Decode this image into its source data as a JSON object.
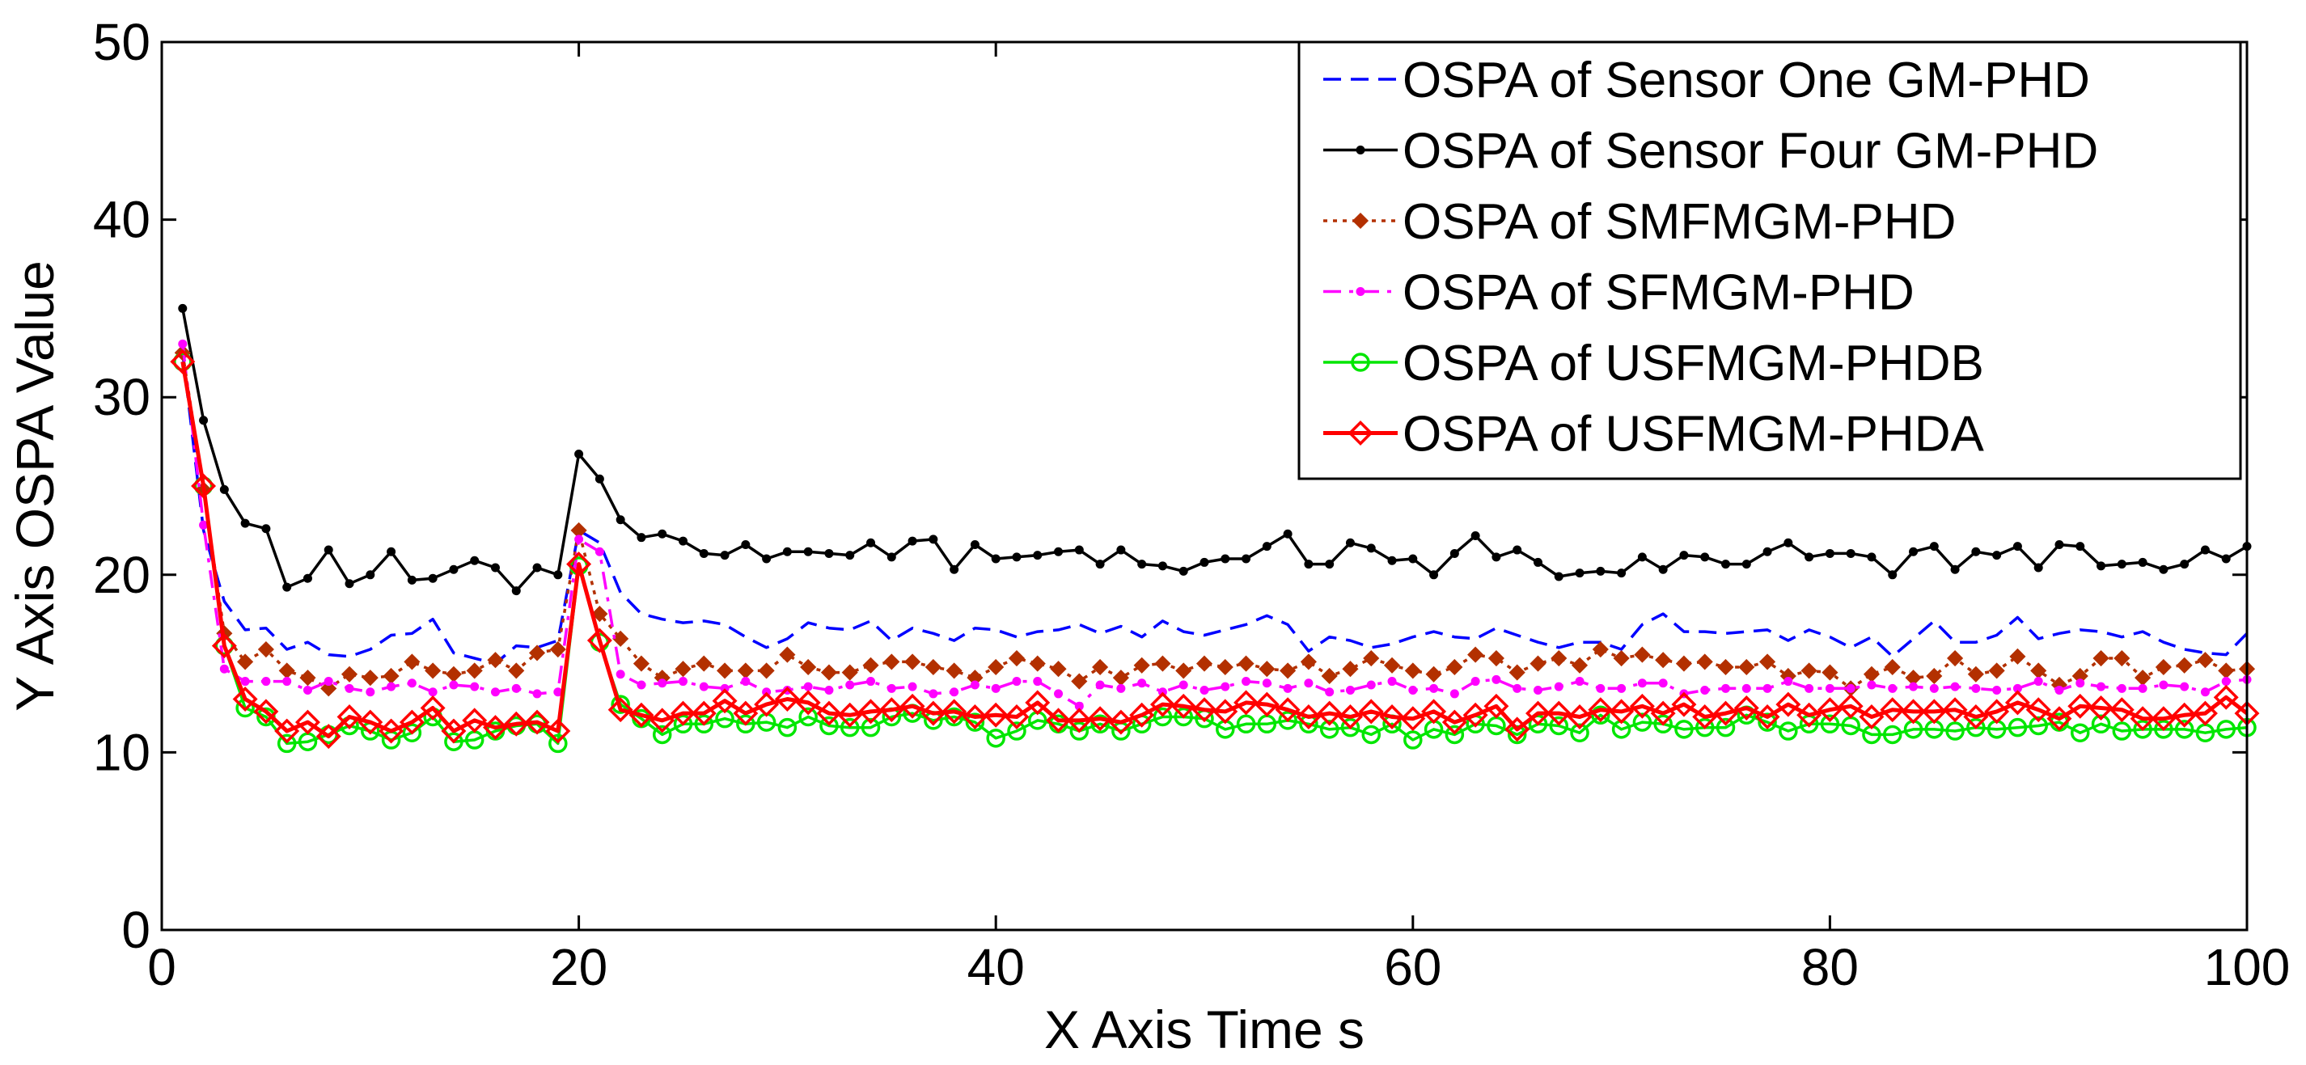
{
  "chart_data": {
    "type": "line",
    "title": "",
    "xlabel": "X Axis Time s",
    "ylabel": "Y Axis OSPA Value",
    "xlim": [
      0,
      100
    ],
    "ylim": [
      0,
      50
    ],
    "xticks": [
      0,
      20,
      40,
      60,
      80,
      100
    ],
    "yticks": [
      0,
      10,
      20,
      30,
      40,
      50
    ],
    "legend_position": "top-right",
    "series": [
      {
        "name": "OSPA of Sensor One GM-PHD",
        "color": "#0000ff",
        "line_style": "dashed",
        "marker": "none",
        "values": [
          32.5,
          22.5,
          18.5,
          16.9,
          17.0,
          15.8,
          16.2,
          15.5,
          15.4,
          15.8,
          16.6,
          16.7,
          17.5,
          15.6,
          15.3,
          15.0,
          16.0,
          15.9,
          16.3,
          22.5,
          21.8,
          19.0,
          17.8,
          17.5,
          17.3,
          17.4,
          17.2,
          16.5,
          15.9,
          16.4,
          17.3,
          17.0,
          16.9,
          17.4,
          16.3,
          17.0,
          16.7,
          16.3,
          17.0,
          16.9,
          16.5,
          16.8,
          16.9,
          17.2,
          16.7,
          17.1,
          16.5,
          17.4,
          16.8,
          16.6,
          16.9,
          17.2,
          17.7,
          17.2,
          15.7,
          16.5,
          16.3,
          15.9,
          16.1,
          16.5,
          16.8,
          16.5,
          16.4,
          17.0,
          16.6,
          16.2,
          15.9,
          16.2,
          16.2,
          15.8,
          17.2,
          17.8,
          16.8,
          16.8,
          16.7,
          16.8,
          16.9,
          16.3,
          16.9,
          16.5,
          15.9,
          16.5,
          15.4,
          16.4,
          17.4,
          16.2,
          16.2,
          16.6,
          17.6,
          16.4,
          16.7,
          16.9,
          16.8,
          16.5,
          16.8,
          16.2,
          15.8,
          15.6,
          15.5,
          16.7
        ]
      },
      {
        "name": "OSPA of Sensor Four GM-PHD",
        "color": "#000000",
        "line_style": "solid",
        "marker": "dot",
        "values": [
          35.0,
          28.7,
          24.8,
          22.9,
          22.6,
          19.3,
          19.8,
          21.4,
          19.5,
          20.0,
          21.3,
          19.7,
          19.8,
          20.3,
          20.8,
          20.4,
          19.1,
          20.4,
          20.0,
          26.8,
          25.4,
          23.1,
          22.1,
          22.3,
          21.9,
          21.2,
          21.1,
          21.7,
          20.9,
          21.3,
          21.3,
          21.2,
          21.1,
          21.8,
          21.0,
          21.9,
          22.0,
          20.3,
          21.7,
          20.9,
          21.0,
          21.1,
          21.3,
          21.4,
          20.6,
          21.4,
          20.6,
          20.5,
          20.2,
          20.7,
          20.9,
          20.9,
          21.6,
          22.3,
          20.6,
          20.6,
          21.8,
          21.5,
          20.8,
          20.9,
          20.0,
          21.2,
          22.2,
          21.0,
          21.4,
          20.7,
          19.9,
          20.1,
          20.2,
          20.1,
          21.0,
          20.3,
          21.1,
          21.0,
          20.6,
          20.6,
          21.3,
          21.8,
          21.0,
          21.2,
          21.2,
          21.0,
          20.0,
          21.3,
          21.6,
          20.3,
          21.3,
          21.1,
          21.6,
          20.4,
          21.7,
          21.6,
          20.5,
          20.6,
          20.7,
          20.3,
          20.6,
          21.4,
          20.9,
          21.6
        ]
      },
      {
        "name": "OSPA of SMFMGM-PHD",
        "color": "#b33000",
        "line_style": "dotted",
        "marker": "diamond-filled",
        "values": [
          32.5,
          24.8,
          16.7,
          15.1,
          15.8,
          14.6,
          14.2,
          13.6,
          14.4,
          14.2,
          14.3,
          15.1,
          14.6,
          14.4,
          14.6,
          15.2,
          14.6,
          15.6,
          15.8,
          22.5,
          17.8,
          16.4,
          15.0,
          14.2,
          14.7,
          15.0,
          14.6,
          14.6,
          14.6,
          15.5,
          14.8,
          14.5,
          14.5,
          14.9,
          15.1,
          15.1,
          14.8,
          14.6,
          14.2,
          14.8,
          15.3,
          15.0,
          14.7,
          14.0,
          14.8,
          14.2,
          14.9,
          15.0,
          14.6,
          15.0,
          14.8,
          15.0,
          14.7,
          14.6,
          15.1,
          14.3,
          14.7,
          15.3,
          14.9,
          14.6,
          14.4,
          14.8,
          15.5,
          15.3,
          14.5,
          15.0,
          15.3,
          14.9,
          15.8,
          15.3,
          15.5,
          15.2,
          15.0,
          15.1,
          14.8,
          14.8,
          15.1,
          14.3,
          14.6,
          14.5,
          13.6,
          14.4,
          14.8,
          14.2,
          14.3,
          15.3,
          14.4,
          14.6,
          15.4,
          14.6,
          13.8,
          14.3,
          15.3,
          15.3,
          14.2,
          14.8,
          14.9,
          15.2,
          14.6,
          14.7
        ]
      },
      {
        "name": "OSPA of SFMGM-PHD",
        "color": "#ff00ff",
        "line_style": "dashdot",
        "marker": "dot",
        "values": [
          33.0,
          22.8,
          14.7,
          14.0,
          14.0,
          14.0,
          13.5,
          14.0,
          13.6,
          13.4,
          13.7,
          13.9,
          13.4,
          13.8,
          13.7,
          13.4,
          13.6,
          13.3,
          13.4,
          22.0,
          21.3,
          14.4,
          13.8,
          13.9,
          14.0,
          13.7,
          13.6,
          14.0,
          13.4,
          13.5,
          13.7,
          13.5,
          13.8,
          14.0,
          13.6,
          13.7,
          13.3,
          13.4,
          13.8,
          13.6,
          14.0,
          14.0,
          13.3,
          12.6,
          13.8,
          13.6,
          13.9,
          13.4,
          13.8,
          13.5,
          13.7,
          14.0,
          13.9,
          13.6,
          13.9,
          13.4,
          13.5,
          13.8,
          14.0,
          13.5,
          13.6,
          13.3,
          14.0,
          14.1,
          13.6,
          13.5,
          13.7,
          14.0,
          13.6,
          13.6,
          13.9,
          13.9,
          13.3,
          13.5,
          13.6,
          13.6,
          13.6,
          14.0,
          13.6,
          13.6,
          13.6,
          13.8,
          13.6,
          13.7,
          13.6,
          13.7,
          13.6,
          13.5,
          13.6,
          14.0,
          13.5,
          13.9,
          13.7,
          13.6,
          13.6,
          13.8,
          13.7,
          13.4,
          14.0,
          14.1
        ]
      },
      {
        "name": "OSPA of USFMGM-PHDB",
        "color": "#00e600",
        "line_style": "solid",
        "marker": "circle-open",
        "values": [
          32.0,
          25.0,
          16.0,
          12.5,
          12.0,
          10.5,
          10.6,
          11.0,
          11.5,
          11.2,
          10.7,
          11.1,
          12.0,
          10.6,
          10.7,
          11.2,
          11.5,
          11.6,
          10.5,
          20.5,
          16.2,
          12.7,
          11.9,
          11.0,
          11.6,
          11.6,
          11.9,
          11.6,
          11.7,
          11.4,
          12.0,
          11.5,
          11.4,
          11.4,
          12.0,
          12.2,
          11.8,
          12.0,
          11.7,
          10.8,
          11.2,
          11.8,
          11.6,
          11.2,
          11.6,
          11.2,
          11.6,
          12.0,
          12.0,
          11.9,
          11.3,
          11.6,
          11.6,
          11.8,
          11.6,
          11.3,
          11.4,
          11.0,
          11.6,
          10.7,
          11.3,
          11.0,
          11.6,
          11.5,
          11.0,
          11.6,
          11.5,
          11.1,
          12.1,
          11.3,
          11.7,
          11.6,
          11.3,
          11.4,
          11.4,
          12.1,
          11.7,
          11.2,
          11.6,
          11.6,
          11.5,
          11.0,
          11.0,
          11.3,
          11.3,
          11.2,
          11.4,
          11.3,
          11.4,
          11.5,
          11.7,
          11.1,
          11.6,
          11.2,
          11.3,
          11.3,
          11.3,
          11.1,
          11.3,
          11.4
        ]
      },
      {
        "name": "OSPA of USFMGM-PHDA",
        "color": "#ff0000",
        "line_style": "solid",
        "marker": "diamond-open",
        "values": [
          32.0,
          25.0,
          16.0,
          13.0,
          12.3,
          11.2,
          11.7,
          10.9,
          12.0,
          11.7,
          11.2,
          11.7,
          12.5,
          11.2,
          11.8,
          11.4,
          11.6,
          11.7,
          11.2,
          20.6,
          16.3,
          12.4,
          12.1,
          11.8,
          12.2,
          12.2,
          12.9,
          12.2,
          12.7,
          13.0,
          12.8,
          12.2,
          12.1,
          12.3,
          12.4,
          12.6,
          12.2,
          12.3,
          12.0,
          12.1,
          12.0,
          12.8,
          11.8,
          11.8,
          11.9,
          11.7,
          12.1,
          12.7,
          12.6,
          12.4,
          12.3,
          12.8,
          12.7,
          12.4,
          12.0,
          12.2,
          12.0,
          12.3,
          12.0,
          11.9,
          12.3,
          11.7,
          12.1,
          12.6,
          11.3,
          12.2,
          12.2,
          12.0,
          12.4,
          12.3,
          12.6,
          12.2,
          12.7,
          12.0,
          12.2,
          12.5,
          12.0,
          12.7,
          12.1,
          12.4,
          12.6,
          12.0,
          12.4,
          12.3,
          12.3,
          12.4,
          12.0,
          12.3,
          12.8,
          12.4,
          11.9,
          12.6,
          12.5,
          12.4,
          11.9,
          11.9,
          12.1,
          12.2,
          13.1,
          12.2
        ]
      }
    ]
  }
}
